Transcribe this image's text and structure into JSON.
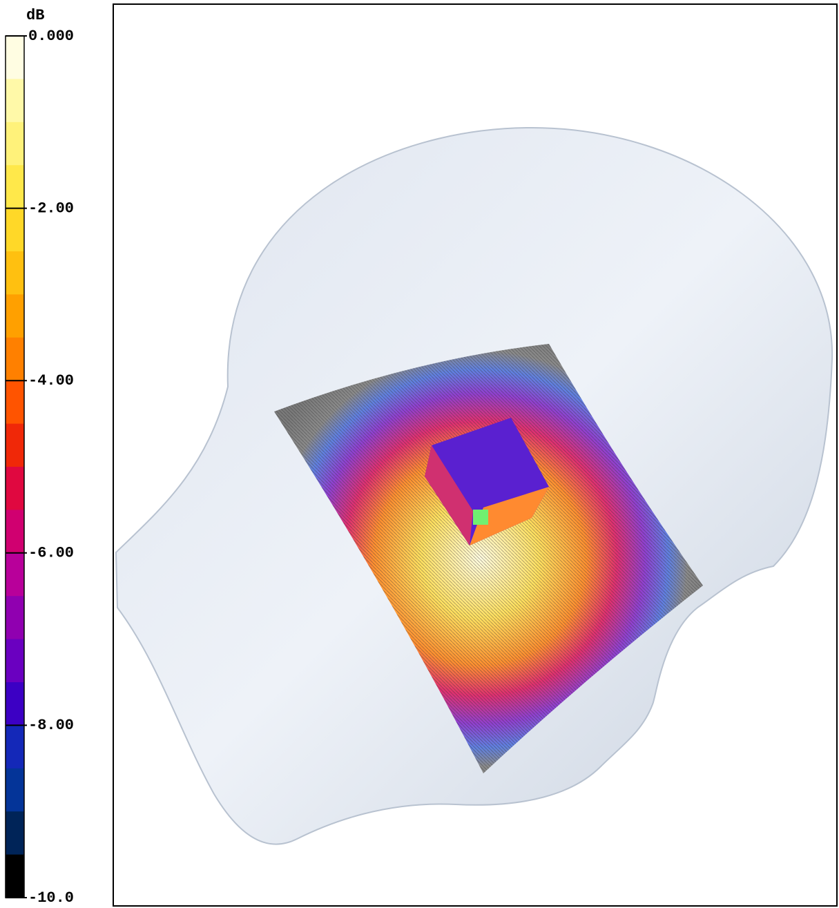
{
  "colorbar": {
    "unit": "dB",
    "lim": [
      -10,
      0
    ],
    "ticks": [
      {
        "value": 0,
        "label": "0.000"
      },
      {
        "value": -2,
        "label": "-2.00"
      },
      {
        "value": -4,
        "label": "-4.00"
      },
      {
        "value": -6,
        "label": "-6.00"
      },
      {
        "value": -8,
        "label": "-8.00"
      },
      {
        "value": -10,
        "label": "-10.0"
      }
    ],
    "colors": [
      "#fffde2",
      "#fff9a8",
      "#fff27a",
      "#ffe84a",
      "#ffd828",
      "#ffc010",
      "#ffa000",
      "#ff8000",
      "#ff5400",
      "#f02808",
      "#e00840",
      "#d00070",
      "#b8009a",
      "#9000b0",
      "#6a00c0",
      "#3c00c4",
      "#1428b8",
      "#043498",
      "#002458",
      "#000000"
    ]
  }
}
